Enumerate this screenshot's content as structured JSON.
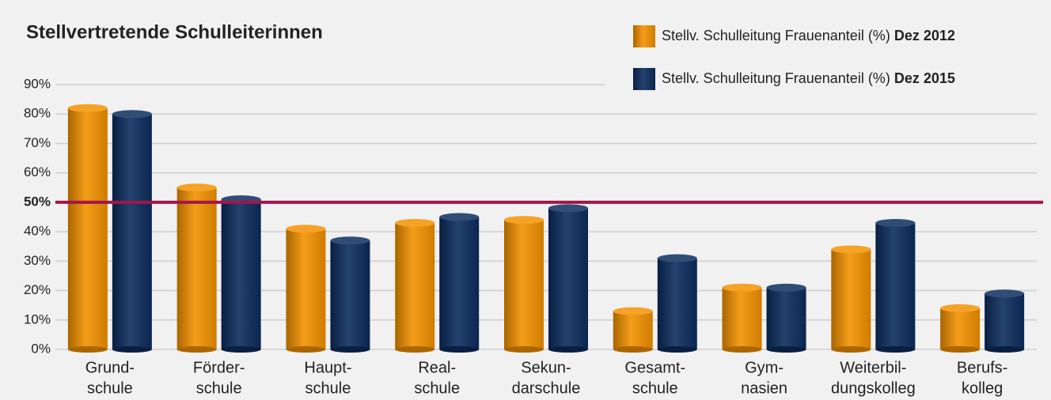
{
  "chart_data": {
    "type": "bar",
    "title": "Stellvertretende Schulleiterinnen",
    "categories": [
      [
        "Grund-",
        "schule"
      ],
      [
        "Förder-",
        "schule"
      ],
      [
        "Haupt-",
        "schule"
      ],
      [
        "Real-",
        "schule"
      ],
      [
        "Sekun-",
        "darschule"
      ],
      [
        "Gesamt-",
        "schule"
      ],
      [
        "Gym-",
        "nasien"
      ],
      [
        "Weiterbil-",
        "dungskolleg"
      ],
      [
        "Berufs-",
        "kolleg"
      ]
    ],
    "series": [
      {
        "name": [
          "Stellv. Schulleitung Frauenanteil (%)",
          "Dez 2012"
        ],
        "color": "#f39200",
        "values": [
          82,
          55,
          41,
          43,
          44,
          13,
          21,
          34,
          14
        ]
      },
      {
        "name": [
          "Stellv. Schulleitung  Frauenanteil (%)",
          "Dez 2015"
        ],
        "color": "#0c2d5e",
        "values": [
          80,
          51,
          37,
          45,
          48,
          31,
          21,
          43,
          19
        ]
      }
    ],
    "ylim": [
      0,
      90
    ],
    "yticks": [
      {
        "value": 0,
        "label": "0%"
      },
      {
        "value": 10,
        "label": "10%"
      },
      {
        "value": 20,
        "label": "20%"
      },
      {
        "value": 30,
        "label": "30%"
      },
      {
        "value": 40,
        "label": "40%"
      },
      {
        "value": 50,
        "label": "50%"
      },
      {
        "value": 60,
        "label": "60%"
      },
      {
        "value": 70,
        "label": "70%"
      },
      {
        "value": 80,
        "label": "80%"
      },
      {
        "value": 90,
        "label": "90%"
      }
    ],
    "grid": true,
    "reference_line": {
      "value": 50,
      "color": "#a3154b"
    },
    "legend": "top-right"
  }
}
